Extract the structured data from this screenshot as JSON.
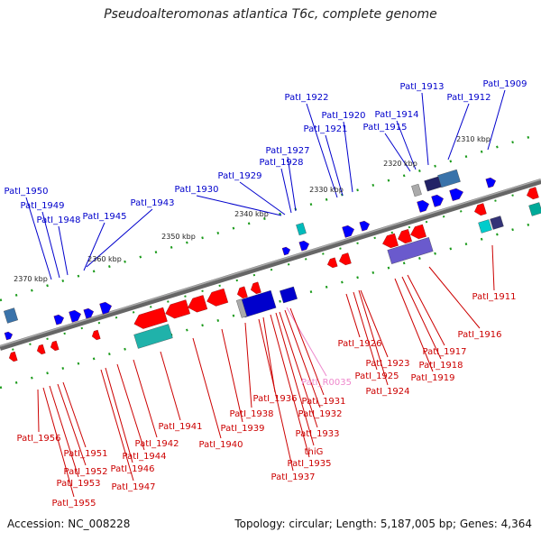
{
  "title": "Pseudoalteromonas atlantica T6c, complete genome",
  "accession": "Accession: NC_008228",
  "summary": "Topology: circular; Length: 5,187,005 bp; Genes: 4,364",
  "colors": {
    "top_label": "#0000cc",
    "bottom_label": "#cc0000",
    "rna_label": "#ee88cc",
    "backbone": "#808080",
    "forward_gene": "#ff0000",
    "reverse_gene": "#0000ff"
  },
  "kbp_ticks": [
    "2310 kbp",
    "2320 kbp",
    "2330 kbp",
    "2340 kbp",
    "2350 kbp",
    "2360 kbp",
    "2370 kbp"
  ],
  "top_genes": [
    "PatI_1909",
    "PatI_1912",
    "PatI_1913",
    "PatI_1914",
    "PatI_1915",
    "PatI_1920",
    "PatI_1921",
    "PatI_1922",
    "PatI_1927",
    "PatI_1928",
    "PatI_1929",
    "PatI_1930",
    "PatI_1943",
    "PatI_1945",
    "PatI_1948",
    "PatI_1949",
    "PatI_1950"
  ],
  "bottom_genes": [
    "PatI_1911",
    "PatI_1916",
    "PatI_1917",
    "PatI_1918",
    "PatI_1919",
    "PatI_1923",
    "PatI_1924",
    "PatI_1925",
    "PatI_1926",
    "PatI_R0035",
    "PatI_1931",
    "PatI_1932",
    "PatI_1933",
    "thiG",
    "PatI_1935",
    "PatI_1936",
    "PatI_1937",
    "PatI_1938",
    "PatI_1939",
    "PatI_1940",
    "PatI_1941",
    "PatI_1942",
    "PatI_1944",
    "PatI_1946",
    "PatI_1947",
    "PatI_1951",
    "PatI_1952",
    "PatI_1953",
    "PatI_1955",
    "PatI_1956"
  ]
}
